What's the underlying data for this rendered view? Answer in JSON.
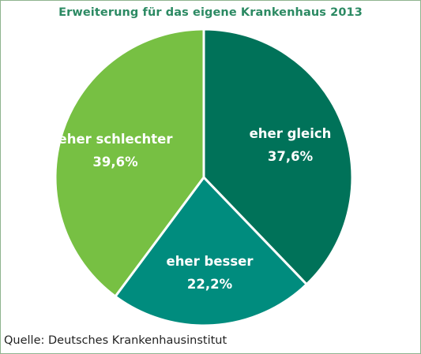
{
  "chart_data": {
    "type": "pie",
    "title": "Erweiterung für das eigene Krankenhaus 2013",
    "source": "Quelle: Deutsches Krankenhausinstitut",
    "slices": [
      {
        "label": "eher gleich",
        "value": 37.6,
        "display": "37,6%",
        "color": "#007259"
      },
      {
        "label": "eher besser",
        "value": 22.2,
        "display": "22,2%",
        "color": "#008c7e"
      },
      {
        "label": "eher schlechter",
        "value": 39.6,
        "display": "39,6%",
        "color": "#77c043"
      }
    ]
  }
}
